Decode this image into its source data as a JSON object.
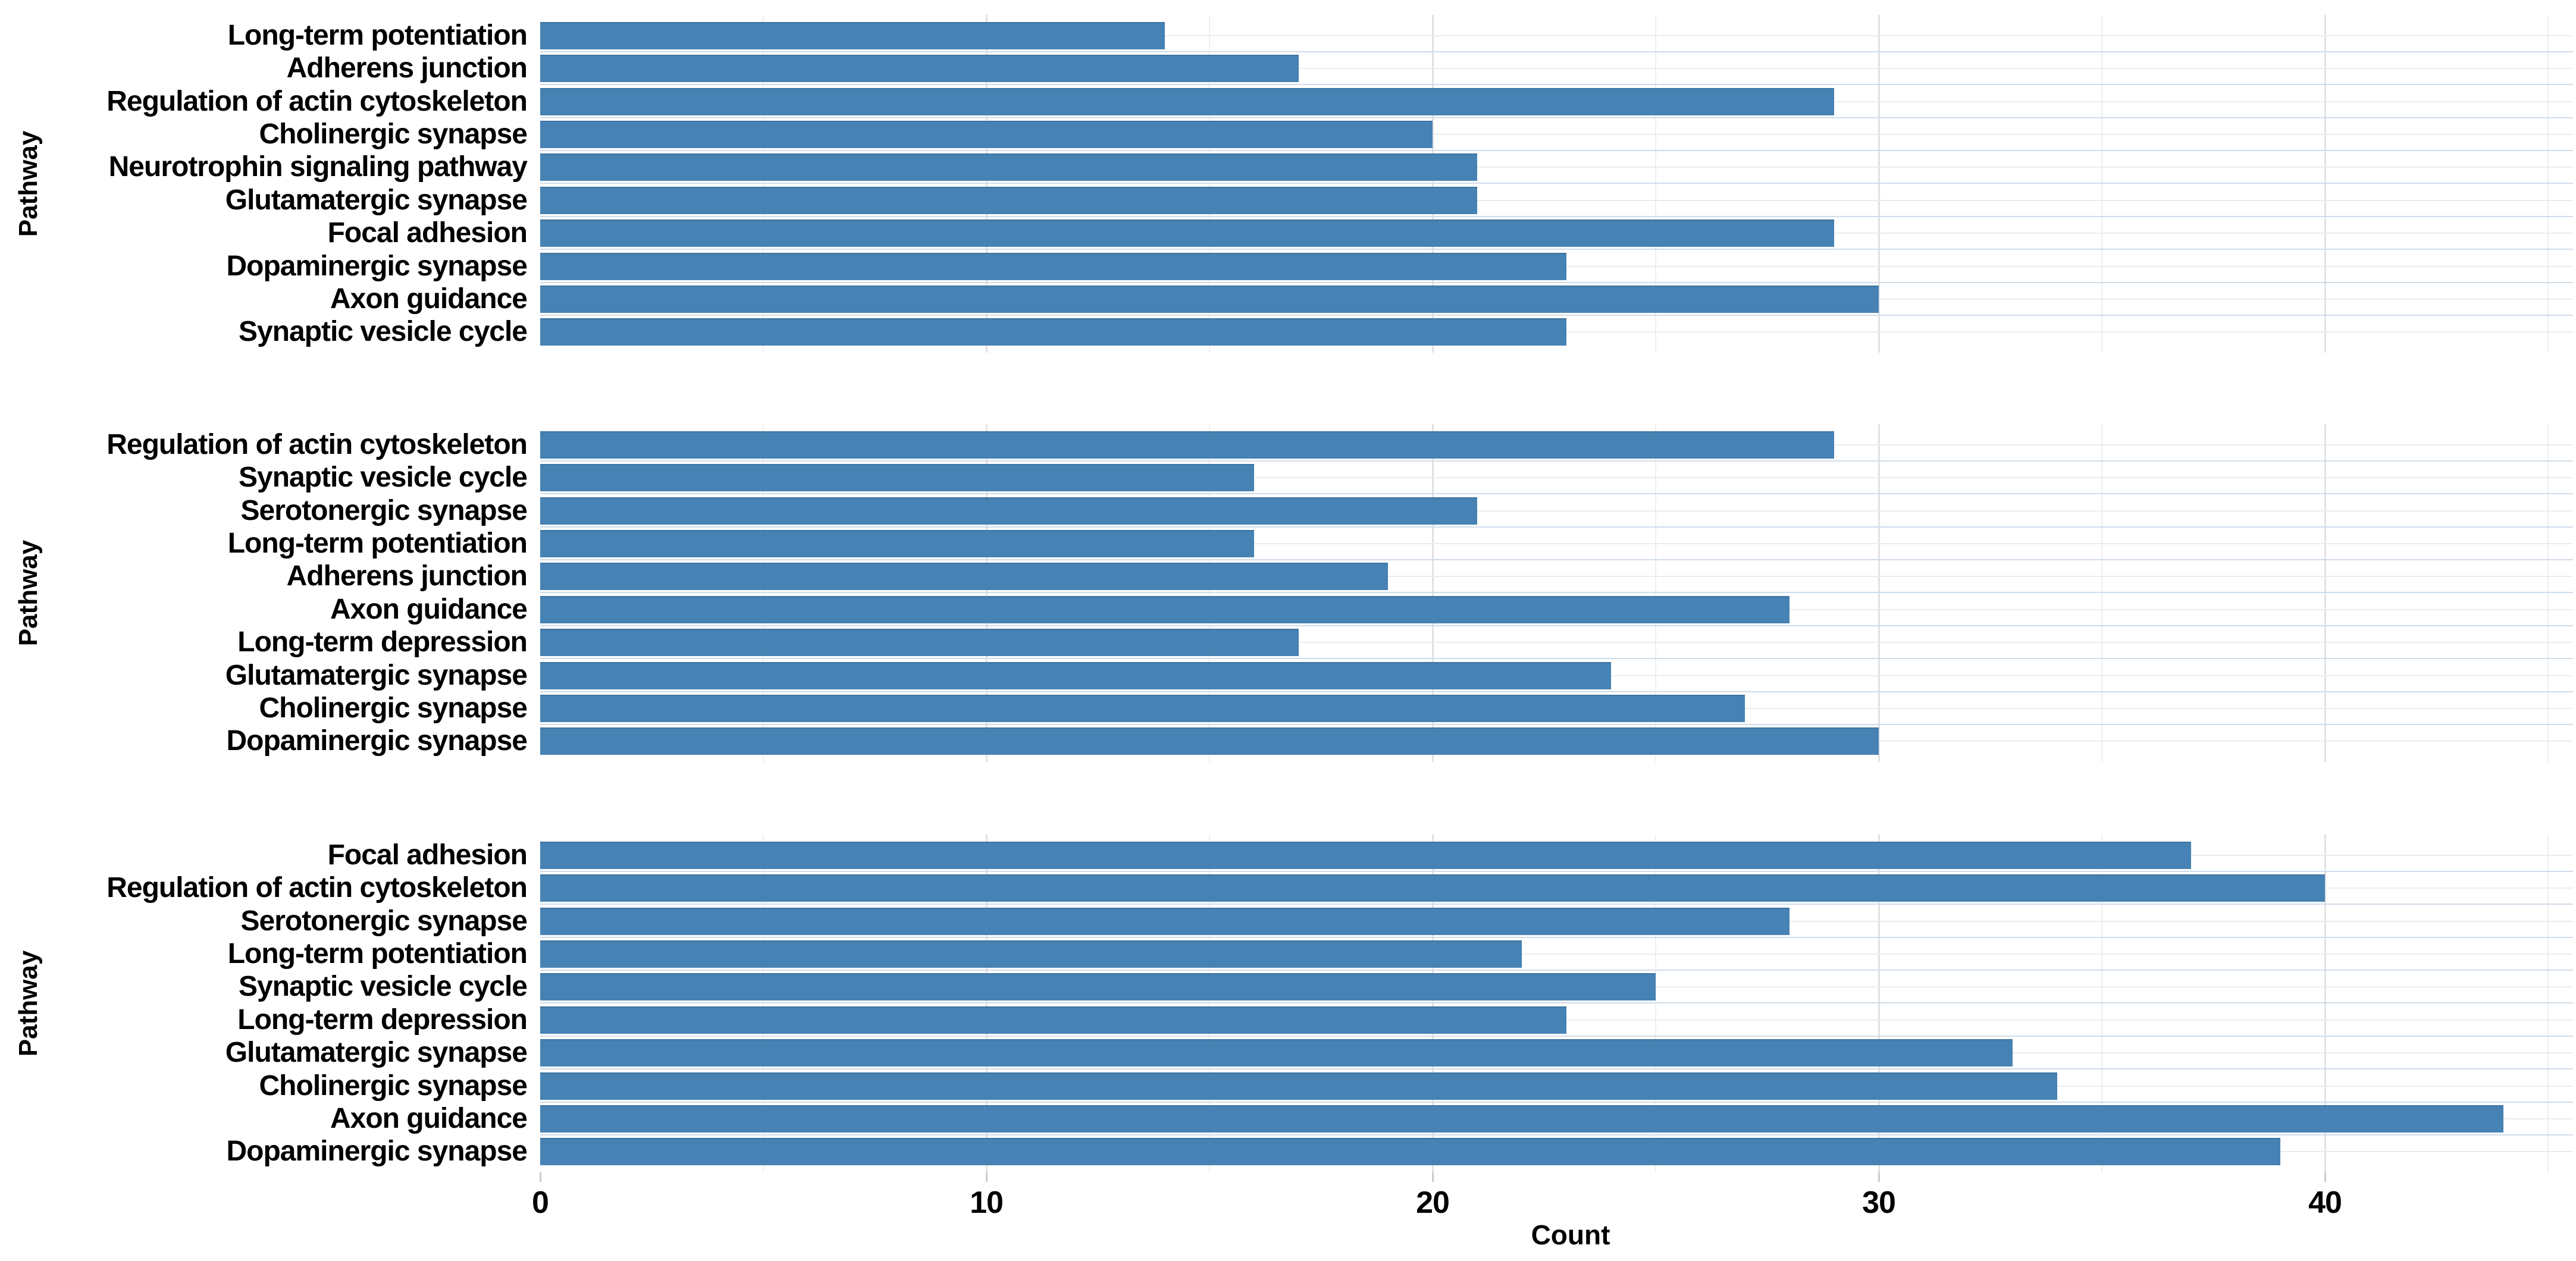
{
  "figure": {
    "background": "#ffffff",
    "bar_color": "#4682b4",
    "grid_major_color": "#e2e2e2",
    "grid_minor_color": "#efefef",
    "category_line_color": "#ececec",
    "text_color": "#000000"
  },
  "axis": {
    "xlabel": "Count",
    "ylabel": "Pathway",
    "ticks": [
      0,
      10,
      20,
      30,
      40
    ],
    "xlim": [
      0,
      45.5
    ],
    "grid_step": 5
  },
  "chart_data": [
    {
      "type": "bar",
      "orientation": "horizontal",
      "ylabel": "Pathway",
      "xlim": [
        0,
        45.5
      ],
      "categories": [
        "Long-term potentiation",
        "Adherens junction",
        "Regulation of actin cytoskeleton",
        "Cholinergic synapse",
        "Neurotrophin signaling pathway",
        "Glutamatergic synapse",
        "Focal adhesion",
        "Dopaminergic synapse",
        "Axon guidance",
        "Synaptic vesicle cycle"
      ],
      "values": [
        14,
        17,
        29,
        20,
        21,
        21,
        29,
        23,
        30,
        23
      ]
    },
    {
      "type": "bar",
      "orientation": "horizontal",
      "ylabel": "Pathway",
      "xlim": [
        0,
        45.5
      ],
      "categories": [
        "Regulation of actin cytoskeleton",
        "Synaptic vesicle cycle",
        "Serotonergic synapse",
        "Long-term potentiation",
        "Adherens junction",
        "Axon guidance",
        "Long-term depression",
        "Glutamatergic synapse",
        "Cholinergic synapse",
        "Dopaminergic synapse"
      ],
      "values": [
        29,
        16,
        21,
        16,
        19,
        28,
        17,
        24,
        27,
        30
      ]
    },
    {
      "type": "bar",
      "orientation": "horizontal",
      "ylabel": "Pathway",
      "xlabel": "Count",
      "xlim": [
        0,
        45.5
      ],
      "categories": [
        "Focal adhesion",
        "Regulation of actin cytoskeleton",
        "Serotonergic synapse",
        "Long-term potentiation",
        "Synaptic vesicle cycle",
        "Long-term depression",
        "Glutamatergic synapse",
        "Cholinergic synapse",
        "Axon guidance",
        "Dopaminergic synapse"
      ],
      "values": [
        37,
        40,
        28,
        22,
        25,
        23,
        33,
        34,
        44,
        39
      ]
    }
  ]
}
